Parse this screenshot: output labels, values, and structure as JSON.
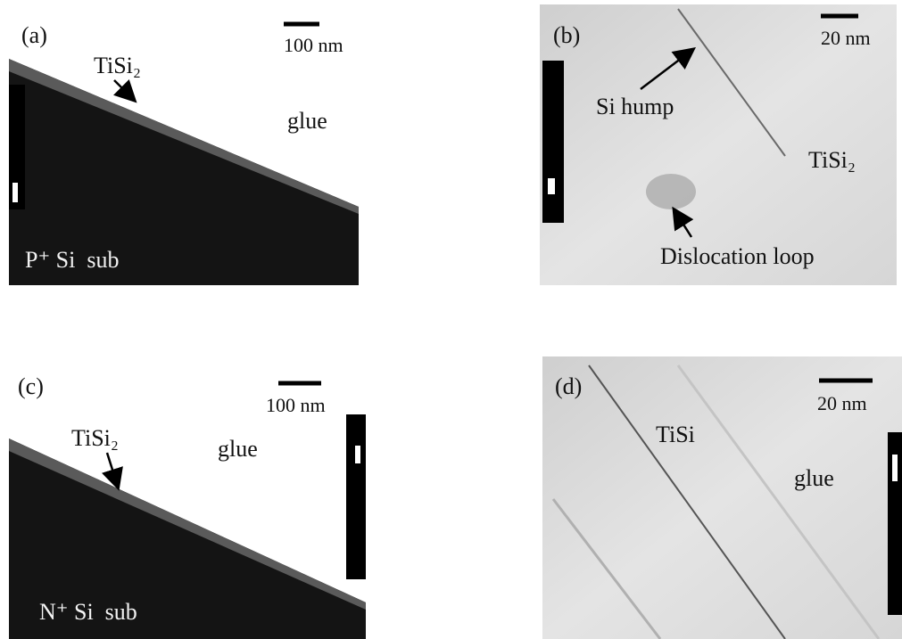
{
  "panels": [
    {
      "label": "(a)",
      "scale": "100 nm",
      "texts": [
        "TiSi₂",
        "glue",
        "P⁺ Si  sub"
      ]
    },
    {
      "label": "(b)",
      "scale": "20 nm",
      "texts": [
        "Si hump",
        "TiSi₂",
        "Dislocation loop"
      ]
    },
    {
      "label": "(c)",
      "scale": "100 nm",
      "texts": [
        "TiSi₂",
        "glue",
        "N⁺ Si  sub"
      ]
    },
    {
      "label": "(d)",
      "scale": "20 nm",
      "texts": [
        "TiSi",
        "glue"
      ]
    }
  ]
}
